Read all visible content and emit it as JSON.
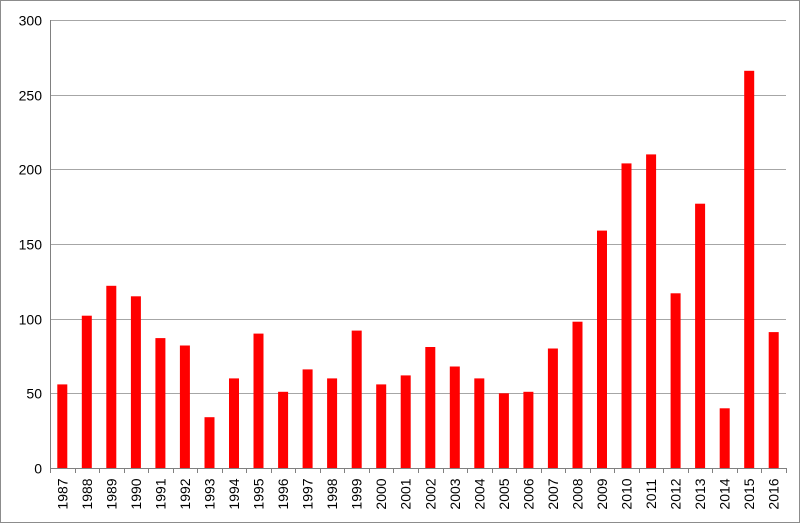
{
  "chart_data": {
    "type": "bar",
    "title": "",
    "xlabel": "",
    "ylabel": "",
    "ylim": [
      0,
      300
    ],
    "yticks": [
      0,
      50,
      100,
      150,
      200,
      250,
      300
    ],
    "grid": true,
    "legend": "none",
    "bar_color": "#ff0000",
    "categories": [
      "1987",
      "1988",
      "1989",
      "1990",
      "1991",
      "1992",
      "1993",
      "1994",
      "1995",
      "1996",
      "1997",
      "1998",
      "1999",
      "2000",
      "2001",
      "2002",
      "2003",
      "2004",
      "2005",
      "2006",
      "2007",
      "2008",
      "2009",
      "2010",
      "2011",
      "2012",
      "2013",
      "2014",
      "2015",
      "2016"
    ],
    "values": [
      56,
      102,
      122,
      115,
      87,
      82,
      34,
      60,
      90,
      51,
      66,
      60,
      92,
      56,
      62,
      81,
      68,
      60,
      50,
      51,
      80,
      98,
      159,
      204,
      210,
      117,
      177,
      40,
      266,
      91
    ]
  }
}
